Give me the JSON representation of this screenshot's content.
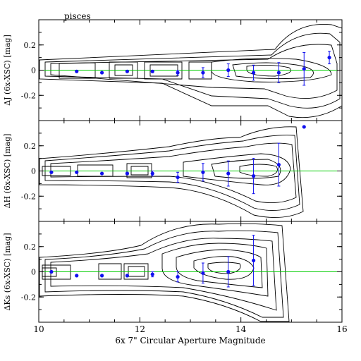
{
  "chart_data": {
    "type": "scatter",
    "title": "pisces",
    "xlabel": "6x 7\" Circular Aperture Magnitude",
    "xlim": [
      10,
      16
    ],
    "x_ticks": [
      10,
      12,
      14,
      16
    ],
    "x_tick_labels": [
      "10",
      "12",
      "14",
      "16"
    ],
    "ylim": [
      -0.4,
      0.4
    ],
    "y_ticks": [
      -0.2,
      0,
      0.2
    ],
    "y_tick_labels": [
      "-0.2",
      "0",
      "0.2"
    ],
    "reference_line": 0,
    "colors": {
      "points": "#1010ee",
      "reference_line": "#00cc00",
      "contours": "#000000"
    },
    "panels": [
      {
        "ylabel": "ΔJ (6x-XSC) [mag]",
        "x": [
          10.75,
          11.25,
          11.75,
          12.25,
          12.75,
          13.25,
          13.75,
          14.25,
          14.75,
          15.25,
          15.75
        ],
        "y": [
          -0.01,
          -0.02,
          -0.01,
          -0.01,
          -0.02,
          -0.02,
          0.0,
          -0.02,
          -0.02,
          0.01,
          0.1
        ],
        "err": [
          0.0,
          0.0,
          0.0,
          0.01,
          0.02,
          0.04,
          0.05,
          0.06,
          0.08,
          0.13,
          0.05
        ]
      },
      {
        "ylabel": "ΔH (6x-XSC) [mag]",
        "x": [
          10.25,
          10.75,
          11.25,
          11.75,
          12.25,
          12.75,
          13.25,
          13.75,
          14.25,
          14.75,
          15.25
        ],
        "y": [
          -0.01,
          -0.01,
          -0.02,
          -0.02,
          -0.02,
          -0.05,
          -0.01,
          -0.02,
          -0.04,
          0.05,
          0.35
        ],
        "err": [
          0.0,
          0.0,
          0.0,
          0.01,
          0.02,
          0.04,
          0.07,
          0.1,
          0.14,
          0.17,
          0.0
        ]
      },
      {
        "ylabel": "ΔKs (6x-XSC) [mag]",
        "x": [
          10.25,
          10.75,
          11.25,
          11.75,
          12.25,
          12.75,
          13.25,
          13.75,
          14.25
        ],
        "y": [
          0.0,
          -0.03,
          -0.03,
          -0.03,
          -0.02,
          -0.04,
          -0.01,
          0.0,
          0.09
        ],
        "err": [
          0.0,
          0.0,
          0.0,
          0.01,
          0.02,
          0.04,
          0.08,
          0.12,
          0.2
        ]
      }
    ]
  }
}
